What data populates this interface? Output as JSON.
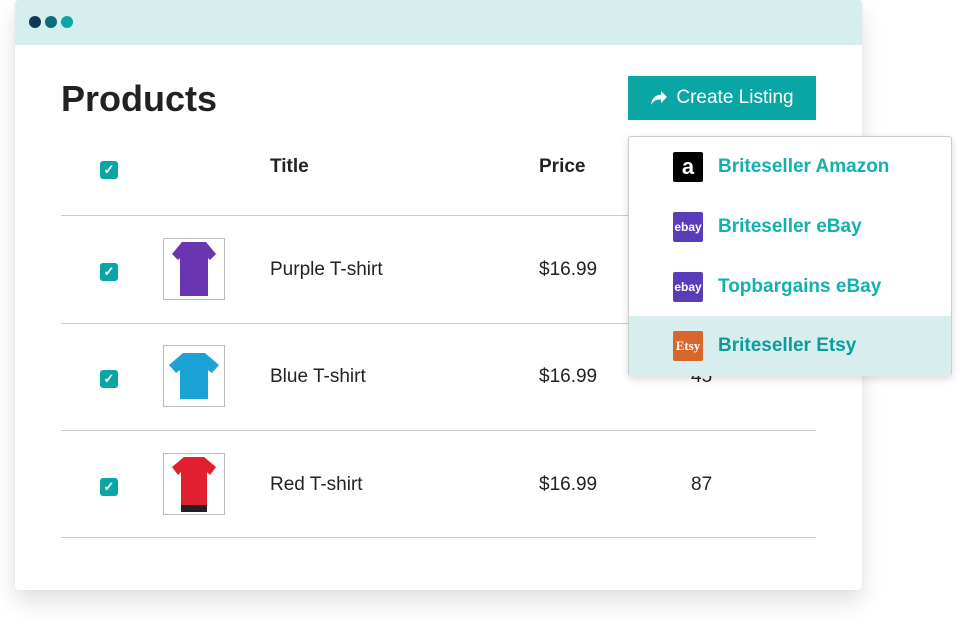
{
  "window": {
    "dots": [
      "#0e3a55",
      "#0d6b7a",
      "#0aa5a5"
    ],
    "header_color": "#d6eeee"
  },
  "page": {
    "title": "Products",
    "accent": "#0aa5a5"
  },
  "toolbar": {
    "create_label": "Create Listing",
    "create_icon": "share-arrow-icon"
  },
  "table": {
    "headers": {
      "title": "Title",
      "price": "Price"
    },
    "rows": [
      {
        "title": "Purple T-shirt",
        "price": "$16.99",
        "quantity": "",
        "color": "#6a35b0",
        "checked": true
      },
      {
        "title": "Blue T-shirt",
        "price": "$16.99",
        "quantity": "45",
        "color": "#1ba3d6",
        "checked": true
      },
      {
        "title": "Red T-shirt",
        "price": "$16.99",
        "quantity": "87",
        "color": "#e0202e",
        "checked": true
      }
    ]
  },
  "dropdown": {
    "items": [
      {
        "label": "Briteseller Amazon",
        "logo": "a",
        "logo_color": "#000000"
      },
      {
        "label": "Briteseller eBay",
        "logo": "ebay",
        "logo_color": "#5a3cb8"
      },
      {
        "label": "Topbargains eBay",
        "logo": "ebay",
        "logo_color": "#5a3cb8"
      },
      {
        "label": "Briteseller Etsy",
        "logo": "Etsy",
        "logo_color": "#d9662a",
        "highlighted": true
      }
    ]
  }
}
